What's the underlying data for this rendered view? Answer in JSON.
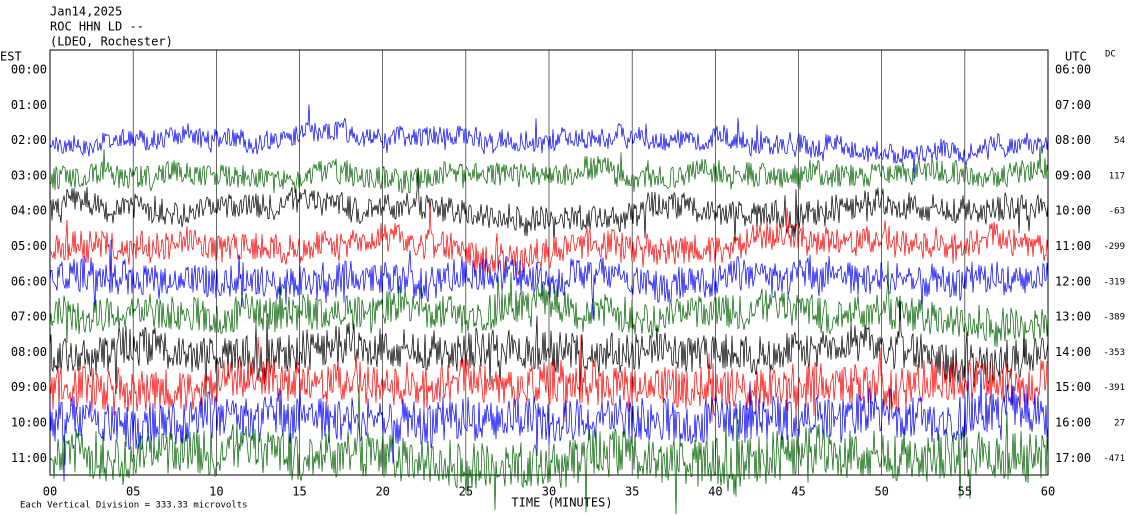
{
  "header": {
    "date": "Jan14,2025",
    "station": "ROC HHN LD --",
    "network": "(LDEO, Rochester)"
  },
  "est_label": "EST",
  "utc_label": "UTC",
  "dc_label": "DC",
  "rows": [
    {
      "est": "00:00",
      "utc": "06:00"
    },
    {
      "est": "01:00",
      "utc": "07:00"
    },
    {
      "est": "02:00",
      "utc": "08:00",
      "dc": 54,
      "color": "#0000ff"
    },
    {
      "est": "03:00",
      "utc": "09:00",
      "dc": 117,
      "color": "#006400"
    },
    {
      "est": "04:00",
      "utc": "10:00",
      "dc": -63,
      "color": "#000000"
    },
    {
      "est": "05:00",
      "utc": "11:00",
      "dc": -299,
      "color": "#ff0000"
    },
    {
      "est": "06:00",
      "utc": "12:00",
      "dc": -319,
      "color": "#0000ff"
    },
    {
      "est": "07:00",
      "utc": "13:00",
      "dc": -389,
      "color": "#006400"
    },
    {
      "est": "08:00",
      "utc": "14:00",
      "dc": -353,
      "color": "#000000"
    },
    {
      "est": "09:00",
      "utc": "15:00",
      "dc": -391,
      "color": "#ff0000"
    },
    {
      "est": "10:00",
      "utc": "16:00",
      "dc": 27,
      "color": "#0000ff"
    },
    {
      "est": "11:00",
      "utc": "17:00",
      "dc": -471,
      "color": "#006400"
    }
  ],
  "x_axis": {
    "label": "TIME (MINUTES)",
    "ticks": [
      "00",
      "05",
      "10",
      "15",
      "20",
      "25",
      "30",
      "35",
      "40",
      "45",
      "50",
      "55",
      "60"
    ]
  },
  "note": "Each Vertical Division =  333.33 microvolts"
}
